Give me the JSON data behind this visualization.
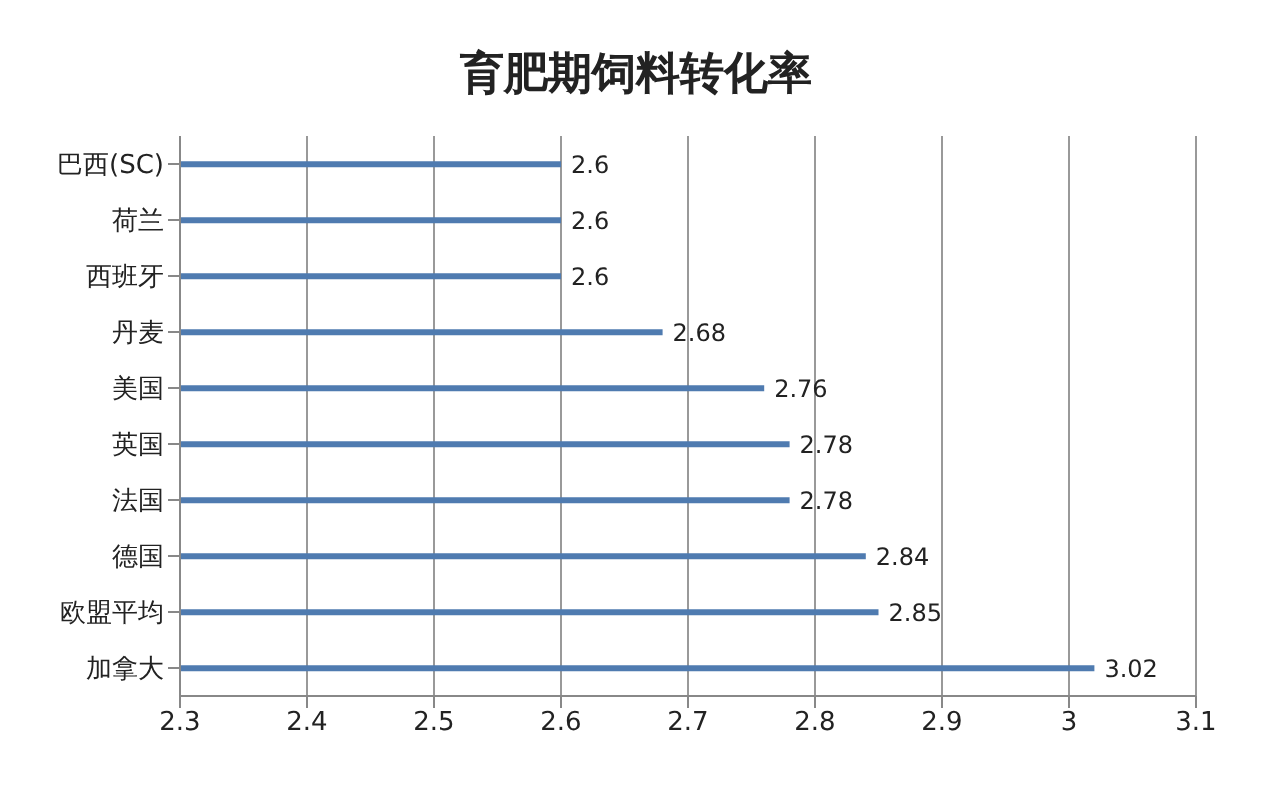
{
  "chart_data": {
    "type": "bar",
    "orientation": "horizontal",
    "title": "育肥期饲料转化率",
    "categories": [
      "巴西(SC)",
      "荷兰",
      "西班牙",
      "丹麦",
      "美国",
      "英国",
      "法国",
      "德国",
      "欧盟平均",
      "加拿大"
    ],
    "values": [
      2.6,
      2.6,
      2.6,
      2.68,
      2.76,
      2.78,
      2.78,
      2.84,
      2.85,
      3.02
    ],
    "color": "#4f7bb0",
    "xlim": [
      2.3,
      3.1
    ],
    "xticks": [
      2.3,
      2.4,
      2.5,
      2.6,
      2.7,
      2.8,
      2.9,
      3,
      3.1
    ],
    "grid": "x",
    "data_labels": true
  }
}
